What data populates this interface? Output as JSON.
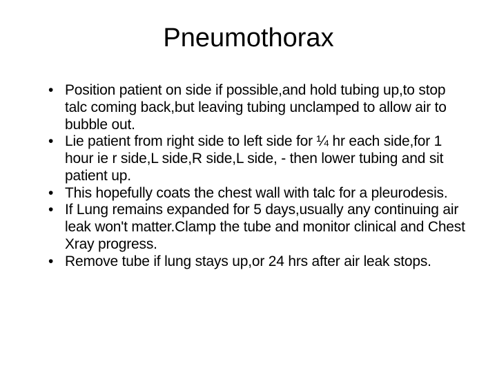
{
  "slide": {
    "title": "Pneumothorax",
    "title_fontsize": 38,
    "body_fontsize": 21,
    "background_color": "#ffffff",
    "text_color": "#000000",
    "bullets": [
      "Position patient on side if possible,and hold tubing up,to stop talc coming back,but leaving tubing unclamped to allow air to bubble out.",
      "Lie patient from right side to left side for ¼ hr each side,for 1 hour ie r side,L side,R side,L side, - then lower tubing and sit patient up.",
      "This hopefully coats the chest wall with talc for a pleurodesis.",
      "If Lung remains expanded for 5 days,usually any continuing air leak won't matter.Clamp the tube and monitor clinical and Chest Xray progress.",
      "Remove tube if lung stays up,or 24 hrs after air leak stops."
    ]
  }
}
